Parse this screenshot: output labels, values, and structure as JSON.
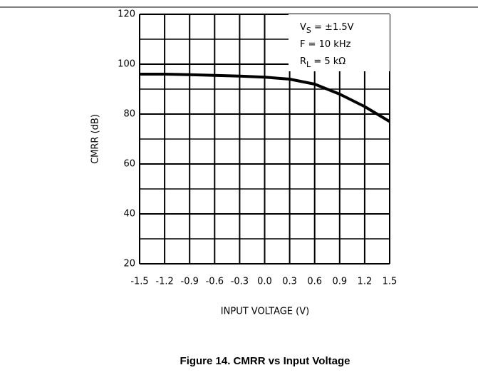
{
  "chart_data": {
    "type": "line",
    "xlabel": "INPUT VOLTAGE (V)",
    "ylabel": "CMRR (dB)",
    "caption": "Figure 14. CMRR vs Input Voltage",
    "x": [
      -1.5,
      -1.2,
      -0.9,
      -0.6,
      -0.3,
      0,
      0.3,
      0.6,
      0.9,
      1.2,
      1.5
    ],
    "series": [
      {
        "color": "#000000",
        "values": [
          96,
          96,
          95.8,
          95.5,
          95.2,
          94.8,
          94,
          92,
          88,
          83,
          77
        ]
      }
    ],
    "xlim": [
      -1.5,
      1.5
    ],
    "xticks": [
      -1.5,
      -1.2,
      -0.9,
      -0.6,
      -0.3,
      {
        "value": 0,
        "label": "0.0"
      },
      0.3,
      0.6,
      0.9,
      1.2,
      1.5
    ],
    "ylim": [
      20,
      120
    ],
    "yticks": [
      20,
      40,
      60,
      80,
      100,
      120
    ],
    "minor_ygrid": [
      30,
      50,
      70,
      90,
      110
    ],
    "grid": true,
    "annotations": [
      {
        "main": "V",
        "sub": "S",
        "rest": " = ±1.5V"
      },
      {
        "main": "F = 10 kHz"
      },
      {
        "main": "R",
        "sub": "L",
        "rest": " = 5 kΩ"
      }
    ]
  }
}
